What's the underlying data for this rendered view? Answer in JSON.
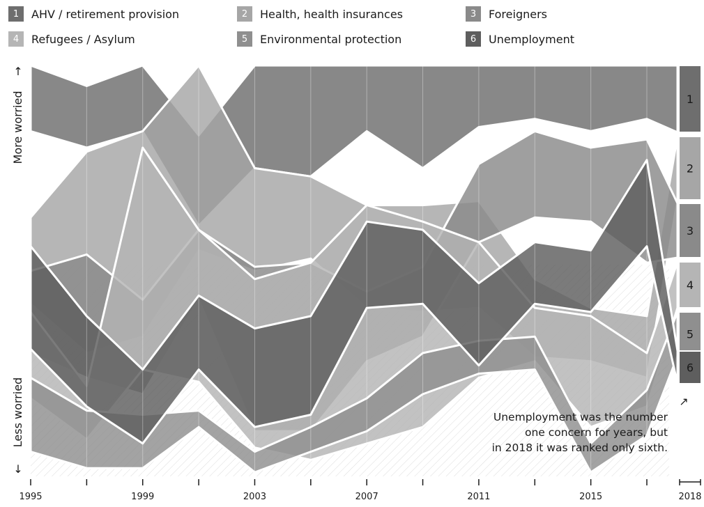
{
  "legend": [
    {
      "num": "1",
      "label": "AHV / retirement provision",
      "color": "#6e6e6e"
    },
    {
      "num": "2",
      "label": "Health, health insurances",
      "color": "#a6a6a6"
    },
    {
      "num": "3",
      "label": "Foreigners",
      "color": "#8a8a8a"
    },
    {
      "num": "4",
      "label": "Refugees / Asylum",
      "color": "#b5b5b5"
    },
    {
      "num": "5",
      "label": "Environmental protection",
      "color": "#8f8f8f"
    },
    {
      "num": "6",
      "label": "Unemployment",
      "color": "#5e5e5e"
    }
  ],
  "axis": {
    "top_label": "More worried",
    "bottom_label": "Less worried",
    "up_arrow": "↑",
    "down_arrow": "↓"
  },
  "annotation": {
    "lines": [
      "Unemployment was the number",
      "one concern for years, but",
      "in 2018 it was ranked only sixth."
    ],
    "arrow": "↗"
  },
  "chart_data": {
    "type": "area",
    "subtype": "rank stream (bump area) chart",
    "ylabel_top": "More worried",
    "ylabel_bottom": "Less worried",
    "x": [
      1995,
      1997,
      1999,
      2001,
      2003,
      2005,
      2007,
      2009,
      2011,
      2013,
      2015,
      2017
    ],
    "x_tick_labels": [
      "1995",
      "1999",
      "2003",
      "2007",
      "2011",
      "2015",
      "2018"
    ],
    "final_year": "2018",
    "final_ranks": [
      {
        "rank": "1",
        "series": "AHV / retirement provision"
      },
      {
        "rank": "2",
        "series": "Health, health insurances"
      },
      {
        "rank": "3",
        "series": "Foreigners"
      },
      {
        "rank": "4",
        "series": "Refugees / Asylum"
      },
      {
        "rank": "5",
        "series": "Environmental protection"
      },
      {
        "rank": "6",
        "series": "Unemployment"
      }
    ],
    "series": [
      {
        "name": "AHV / retirement provision",
        "color": "#6e6e6e",
        "top": [
          100,
          95,
          100,
          83,
          100,
          100,
          100,
          100,
          100,
          100,
          100,
          100
        ],
        "bottom": [
          84,
          80,
          84,
          61,
          75,
          73,
          84,
          75,
          85,
          87,
          84,
          87
        ]
      },
      {
        "name": "Health, health insurances",
        "color": "#a6a6a6",
        "top": [
          63,
          79,
          84,
          100,
          75,
          73,
          66,
          66,
          67,
          48,
          41,
          39
        ],
        "bottom": [
          42,
          30,
          34,
          55,
          50,
          53,
          41,
          40,
          41,
          29,
          28,
          24
        ]
      },
      {
        "name": "Foreigners",
        "color": "#8a8a8a",
        "top": [
          50,
          54,
          43,
          60,
          51,
          52,
          45,
          51,
          76,
          84,
          80,
          82
        ],
        "bottom": [
          30,
          24,
          20,
          43,
          11,
          11,
          28,
          34,
          57,
          63,
          62,
          52
        ]
      },
      {
        "name": "Refugees / Asylum",
        "color": "#b5b5b5",
        "top": [
          40,
          22,
          80,
          60,
          48,
          52,
          66,
          62,
          57,
          41,
          39,
          30
        ],
        "bottom": [
          19,
          9,
          26,
          23,
          7,
          4,
          8,
          12,
          24,
          28,
          12,
          17
        ]
      },
      {
        "name": "Environmental protection",
        "color": "#8f8f8f",
        "top": [
          24,
          16,
          15,
          16,
          6,
          12,
          19,
          30,
          33,
          34,
          8,
          21
        ],
        "bottom": [
          6,
          2,
          2,
          12,
          1,
          6,
          11,
          20,
          25,
          26,
          1,
          10
        ]
      },
      {
        "name": "Unemployment",
        "color": "#5e5e5e",
        "top": [
          56,
          39,
          26,
          44,
          36,
          39,
          62,
          60,
          47,
          57,
          55,
          77
        ],
        "bottom": [
          31,
          17,
          8,
          26,
          12,
          15,
          41,
          42,
          27,
          42,
          40,
          56
        ]
      }
    ]
  }
}
